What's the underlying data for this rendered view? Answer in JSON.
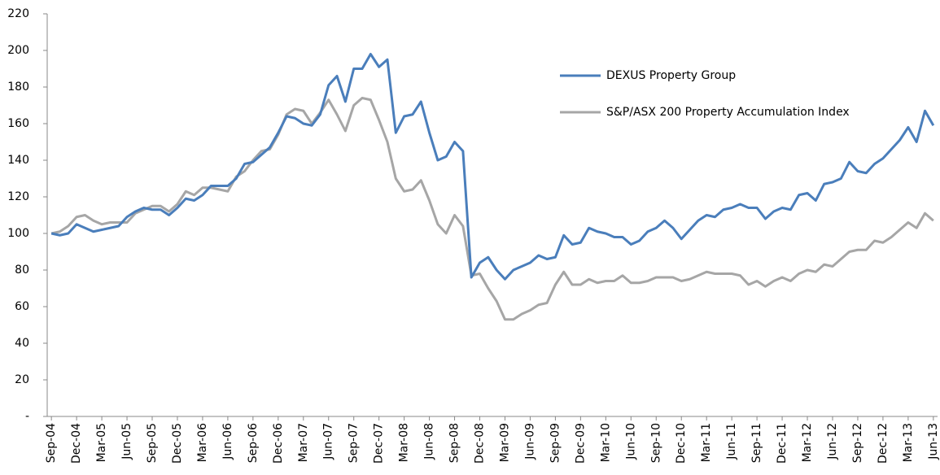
{
  "chart_data": {
    "type": "line",
    "categories": [
      "Sep-04",
      null,
      null,
      "Dec-04",
      null,
      null,
      "Mar-05",
      null,
      null,
      "Jun-05",
      null,
      null,
      "Sep-05",
      null,
      null,
      "Dec-05",
      null,
      null,
      "Mar-06",
      null,
      null,
      "Jun-06",
      null,
      null,
      "Sep-06",
      null,
      null,
      "Dec-06",
      null,
      null,
      "Mar-07",
      null,
      null,
      "Jun-07",
      null,
      null,
      "Sep-07",
      null,
      null,
      "Dec-07",
      null,
      null,
      "Mar-08",
      null,
      null,
      "Jun-08",
      null,
      null,
      "Sep-08",
      null,
      null,
      "Dec-08",
      null,
      null,
      "Mar-09",
      null,
      null,
      "Jun-09",
      null,
      null,
      "Sep-09",
      null,
      null,
      "Dec-09",
      null,
      null,
      "Mar-10",
      null,
      null,
      "Jun-10",
      null,
      null,
      "Sep-10",
      null,
      null,
      "Dec-10",
      null,
      null,
      "Mar-11",
      null,
      null,
      "Jun-11",
      null,
      null,
      "Sep-11",
      null,
      null,
      "Dec-11",
      null,
      null,
      "Mar-12",
      null,
      null,
      "Jun-12",
      null,
      null,
      "Sep-12",
      null,
      null,
      "Dec-12",
      null,
      null,
      "Mar-13",
      null,
      null,
      "Jun-13"
    ],
    "series": [
      {
        "name": "DEXUS Property Group",
        "color": "#4a7ebb",
        "values": [
          100,
          99,
          100,
          105,
          103,
          101,
          102,
          103,
          104,
          109,
          112,
          114,
          113,
          113,
          110,
          114,
          119,
          118,
          121,
          126,
          126,
          126,
          130,
          138,
          139,
          143,
          147,
          155,
          164,
          163,
          160,
          159,
          165,
          181,
          186,
          172,
          190,
          190,
          198,
          191,
          195,
          155,
          164,
          165,
          172,
          155,
          140,
          142,
          150,
          145,
          76,
          84,
          87,
          80,
          75,
          80,
          82,
          84,
          88,
          86,
          87,
          99,
          94,
          95,
          103,
          101,
          100,
          98,
          98,
          94,
          96,
          101,
          103,
          107,
          103,
          97,
          102,
          107,
          110,
          109,
          113,
          114,
          116,
          114,
          114,
          108,
          112,
          114,
          113,
          121,
          122,
          118,
          127,
          128,
          130,
          139,
          134,
          133,
          138,
          141,
          146,
          151,
          158,
          150,
          167,
          159
        ]
      },
      {
        "name": "S&P/ASX 200 Property Accumulation Index",
        "color": "#a6a6a6",
        "values": [
          100,
          101,
          104,
          109,
          110,
          107,
          105,
          106,
          106,
          106,
          111,
          113,
          115,
          115,
          112,
          116,
          123,
          121,
          125,
          125,
          124,
          123,
          131,
          134,
          140,
          145,
          146,
          154,
          165,
          168,
          167,
          160,
          166,
          173,
          165,
          156,
          170,
          174,
          173,
          162,
          150,
          130,
          123,
          124,
          129,
          118,
          105,
          100,
          110,
          104,
          77,
          78,
          70,
          63,
          53,
          53,
          56,
          58,
          61,
          62,
          72,
          79,
          72,
          72,
          75,
          73,
          74,
          74,
          77,
          73,
          73,
          74,
          76,
          76,
          76,
          74,
          75,
          77,
          79,
          78,
          78,
          78,
          77,
          72,
          74,
          71,
          74,
          76,
          74,
          78,
          80,
          79,
          83,
          82,
          86,
          90,
          91,
          91,
          96,
          95,
          98,
          102,
          106,
          103,
          111,
          107
        ]
      }
    ],
    "ylim": [
      0,
      220
    ],
    "yticks": [
      {
        "value": 0,
        "label": "-"
      },
      20,
      40,
      60,
      80,
      100,
      120,
      140,
      160,
      180,
      200,
      220
    ]
  }
}
